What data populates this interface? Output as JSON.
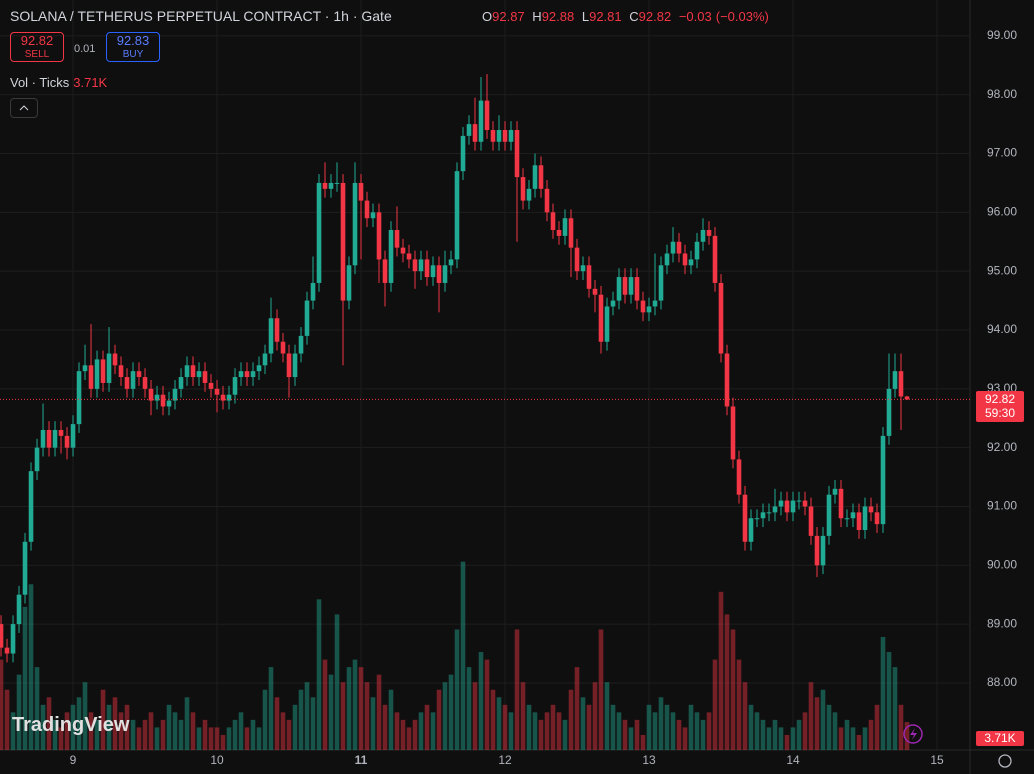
{
  "chart_data": {
    "type": "candlestick",
    "title": "SOLANA / TETHERUS PERPETUAL CONTRACT · 1h · Gate",
    "ohlc_legend": {
      "labels": [
        "O",
        "H",
        "L",
        "C"
      ],
      "change": "−0.03",
      "change_pct": "(−0.03%)"
    },
    "trade": {
      "sell_price": 92.82,
      "sell_label": "SELL",
      "spread": 0.01,
      "buy_price": 92.83,
      "buy_label": "BUY"
    },
    "countdown": "59:30",
    "logo": "TradingView",
    "up_color": "#22ab94",
    "down_color": "#f23645",
    "x": [
      0,
      1,
      2,
      3,
      4,
      5,
      6,
      7,
      8,
      9,
      10,
      11,
      12,
      13,
      14,
      15,
      16,
      17,
      18,
      19,
      20,
      21,
      22,
      23,
      24,
      25,
      26,
      27,
      28,
      29,
      30,
      31,
      32,
      33,
      34,
      35,
      36,
      37,
      38,
      39,
      40,
      41,
      42,
      43,
      44,
      45,
      46,
      47,
      48,
      49,
      50,
      51,
      52,
      53,
      54,
      55,
      56,
      57,
      58,
      59,
      60,
      61,
      62,
      63,
      64,
      65,
      66,
      67,
      68,
      69,
      70,
      71,
      72,
      73,
      74,
      75,
      76,
      77,
      78,
      79,
      80,
      81,
      82,
      83,
      84,
      85,
      86,
      87,
      88,
      89,
      90,
      91,
      92,
      93,
      94,
      95,
      96,
      97,
      98,
      99,
      100,
      101,
      102,
      103,
      104,
      105,
      106,
      107,
      108,
      109,
      110,
      111,
      112,
      113,
      114,
      115,
      116,
      117,
      118,
      119,
      120,
      121,
      122,
      123,
      124,
      125,
      126,
      127,
      128,
      129,
      130,
      131,
      132,
      133,
      134,
      135,
      136,
      137,
      138,
      139,
      140,
      141,
      142,
      143,
      144,
      145,
      146,
      147,
      148,
      149,
      150,
      151
    ],
    "open": [
      89.0,
      88.6,
      88.5,
      89.0,
      89.5,
      90.4,
      91.6,
      92.0,
      92.3,
      92.0,
      92.3,
      92.2,
      92.0,
      92.4,
      93.3,
      93.4,
      93.0,
      93.5,
      93.1,
      93.6,
      93.4,
      93.2,
      93.0,
      93.3,
      93.2,
      93.0,
      92.8,
      92.9,
      92.7,
      92.8,
      93.0,
      93.2,
      93.4,
      93.2,
      93.3,
      93.1,
      93.0,
      92.9,
      92.8,
      92.9,
      93.2,
      93.3,
      93.2,
      93.3,
      93.4,
      93.6,
      94.2,
      93.8,
      93.6,
      93.2,
      93.6,
      93.9,
      94.5,
      94.8,
      96.5,
      96.4,
      96.5,
      96.5,
      94.5,
      95.1,
      96.5,
      96.2,
      95.9,
      96.0,
      95.2,
      94.8,
      95.7,
      95.4,
      95.3,
      95.2,
      95.0,
      95.2,
      94.9,
      95.1,
      94.8,
      95.1,
      95.2,
      96.7,
      97.3,
      97.5,
      97.2,
      97.9,
      97.4,
      97.2,
      97.4,
      97.2,
      97.4,
      96.6,
      96.2,
      96.4,
      96.8,
      96.4,
      96.0,
      95.7,
      95.6,
      95.9,
      95.4,
      95.0,
      95.1,
      94.7,
      94.6,
      93.8,
      94.4,
      94.5,
      94.9,
      94.6,
      94.9,
      94.5,
      94.3,
      94.4,
      94.5,
      95.1,
      95.3,
      95.5,
      95.3,
      95.1,
      95.2,
      95.5,
      95.7,
      95.6,
      94.8,
      93.6,
      92.7,
      91.8,
      91.2,
      90.4,
      90.8,
      90.8,
      90.9,
      90.9,
      91.0,
      91.1,
      90.9,
      91.1,
      91.1,
      91.0,
      90.5,
      90.0,
      90.5,
      91.2,
      91.3,
      90.8,
      90.8,
      90.9,
      90.6,
      91.0,
      90.9,
      90.7,
      92.2,
      93.0,
      93.3,
      92.87
    ],
    "high": [
      89.15,
      88.75,
      89.15,
      89.65,
      90.55,
      91.75,
      92.15,
      92.75,
      92.45,
      92.45,
      92.45,
      92.35,
      92.55,
      93.45,
      93.75,
      94.1,
      93.65,
      93.65,
      94.05,
      93.75,
      93.55,
      93.35,
      93.45,
      93.45,
      93.35,
      93.15,
      93.05,
      93.05,
      92.95,
      93.15,
      93.35,
      93.55,
      93.55,
      93.45,
      93.45,
      93.25,
      93.15,
      93.05,
      93.05,
      93.35,
      93.45,
      93.45,
      93.45,
      93.55,
      93.75,
      94.55,
      94.35,
      93.95,
      93.75,
      93.75,
      94.05,
      94.65,
      95.25,
      96.65,
      96.85,
      96.65,
      96.85,
      96.65,
      95.25,
      96.85,
      96.65,
      96.35,
      96.15,
      96.15,
      95.35,
      95.85,
      96.1,
      95.55,
      95.45,
      95.35,
      95.35,
      95.35,
      95.25,
      95.25,
      95.35,
      95.35,
      96.85,
      97.45,
      97.65,
      97.95,
      98.3,
      98.35,
      97.55,
      97.65,
      97.55,
      97.55,
      97.55,
      96.75,
      96.55,
      97.0,
      96.95,
      96.55,
      96.15,
      95.85,
      96.05,
      96.05,
      95.55,
      95.25,
      95.25,
      94.85,
      94.75,
      94.55,
      94.65,
      95.05,
      95.05,
      95.05,
      95.05,
      94.65,
      94.55,
      95.3,
      95.25,
      95.45,
      95.75,
      95.65,
      95.45,
      95.35,
      95.65,
      95.9,
      95.85,
      95.75,
      94.95,
      93.75,
      92.85,
      91.95,
      91.35,
      90.95,
      90.95,
      91.05,
      91.05,
      91.3,
      91.25,
      91.25,
      91.25,
      91.25,
      91.25,
      91.15,
      90.65,
      90.65,
      91.35,
      91.45,
      91.45,
      90.95,
      91.05,
      91.05,
      91.15,
      91.15,
      91.05,
      92.35,
      93.6,
      93.6,
      93.6,
      92.88
    ],
    "low": [
      88.45,
      88.35,
      88.35,
      88.85,
      89.35,
      90.25,
      91.45,
      91.85,
      91.85,
      91.85,
      91.9,
      91.8,
      91.85,
      92.25,
      93.15,
      92.85,
      92.85,
      92.95,
      92.95,
      93.25,
      93.05,
      92.85,
      92.85,
      93.05,
      92.85,
      92.55,
      92.65,
      92.55,
      92.55,
      92.65,
      92.85,
      93.05,
      93.05,
      93.05,
      92.95,
      92.85,
      92.6,
      92.65,
      92.65,
      92.75,
      93.05,
      93.05,
      93.05,
      93.15,
      93.25,
      93.45,
      93.65,
      93.45,
      92.85,
      93.05,
      93.45,
      93.75,
      94.35,
      94.65,
      96.25,
      96.25,
      96.35,
      93.4,
      94.35,
      94.95,
      95.2,
      95.75,
      95.75,
      94.8,
      94.4,
      94.65,
      95.25,
      95.15,
      95.05,
      94.7,
      94.85,
      94.75,
      94.75,
      94.3,
      94.65,
      94.95,
      95.05,
      96.55,
      97.15,
      97.05,
      97.05,
      97.25,
      97.05,
      97.05,
      97.05,
      97.05,
      95.5,
      96.05,
      96.05,
      96.25,
      96.25,
      95.85,
      95.55,
      95.45,
      95.45,
      94.9,
      94.85,
      94.85,
      94.55,
      94.3,
      93.6,
      93.65,
      94.25,
      94.35,
      94.45,
      94.45,
      94.35,
      94.15,
      94.15,
      94.25,
      94.35,
      94.95,
      95.15,
      95.15,
      94.95,
      94.95,
      95.05,
      95.35,
      95.45,
      94.65,
      93.45,
      92.55,
      91.65,
      91.05,
      90.25,
      90.25,
      90.65,
      90.65,
      90.75,
      90.75,
      90.85,
      90.75,
      90.75,
      90.95,
      90.85,
      90.35,
      89.8,
      89.85,
      90.35,
      91.05,
      90.65,
      90.65,
      90.65,
      90.45,
      90.45,
      90.75,
      90.55,
      90.55,
      92.05,
      92.85,
      92.3,
      92.81
    ],
    "close": [
      88.6,
      88.5,
      89.0,
      89.5,
      90.4,
      91.6,
      92.0,
      92.3,
      92.0,
      92.3,
      92.2,
      92.0,
      92.4,
      93.3,
      93.4,
      93.0,
      93.5,
      93.1,
      93.6,
      93.4,
      93.2,
      93.0,
      93.3,
      93.2,
      93.0,
      92.8,
      92.9,
      92.7,
      92.8,
      93.0,
      93.2,
      93.4,
      93.2,
      93.3,
      93.1,
      93.0,
      92.9,
      92.8,
      92.9,
      93.2,
      93.3,
      93.2,
      93.3,
      93.4,
      93.6,
      94.2,
      93.8,
      93.6,
      93.2,
      93.6,
      93.9,
      94.5,
      94.8,
      96.5,
      96.4,
      96.5,
      96.5,
      94.5,
      95.1,
      96.5,
      96.2,
      95.9,
      96.0,
      95.2,
      94.8,
      95.7,
      95.4,
      95.3,
      95.2,
      95.0,
      95.2,
      94.9,
      95.1,
      94.8,
      95.1,
      95.2,
      96.7,
      97.3,
      97.5,
      97.2,
      97.9,
      97.4,
      97.2,
      97.4,
      97.2,
      97.4,
      96.6,
      96.2,
      96.4,
      96.8,
      96.4,
      96.0,
      95.7,
      95.6,
      95.9,
      95.4,
      95.0,
      95.1,
      94.7,
      94.6,
      93.8,
      94.4,
      94.5,
      94.9,
      94.6,
      94.9,
      94.5,
      94.3,
      94.4,
      94.5,
      95.1,
      95.3,
      95.5,
      95.3,
      95.1,
      95.2,
      95.5,
      95.7,
      95.6,
      94.8,
      93.6,
      92.7,
      91.8,
      91.2,
      90.4,
      90.8,
      90.8,
      90.9,
      90.9,
      91.0,
      91.1,
      90.9,
      91.1,
      91.1,
      91.0,
      90.5,
      90.0,
      90.5,
      91.2,
      91.3,
      90.8,
      90.8,
      90.9,
      90.6,
      91.0,
      90.9,
      90.7,
      92.2,
      93.0,
      93.3,
      92.87,
      92.82
    ],
    "volume": {
      "name": "Vol · Ticks",
      "last_label": "3.71K",
      "vlim": [
        0,
        30000
      ],
      "values": [
        12000,
        8000,
        5000,
        10000,
        19000,
        22000,
        11000,
        6000,
        7000,
        4000,
        3000,
        5000,
        6000,
        7000,
        9000,
        5000,
        4000,
        8000,
        6000,
        7000,
        5000,
        6000,
        4000,
        3000,
        4000,
        5000,
        3000,
        4000,
        6000,
        5000,
        4000,
        7000,
        5000,
        3000,
        4000,
        3000,
        3000,
        2000,
        3000,
        4000,
        5000,
        3000,
        4000,
        3000,
        8000,
        11000,
        7000,
        5000,
        4000,
        6000,
        8000,
        9000,
        7000,
        20000,
        12000,
        10000,
        18000,
        9000,
        11000,
        12000,
        11000,
        9000,
        7000,
        10000,
        6000,
        8000,
        5000,
        4000,
        3000,
        4000,
        5000,
        6000,
        5000,
        8000,
        9000,
        10000,
        16000,
        25000,
        11000,
        9000,
        13000,
        12000,
        8000,
        7000,
        6000,
        5000,
        16000,
        9000,
        6000,
        5000,
        4000,
        5000,
        6000,
        5000,
        4000,
        8000,
        11000,
        7000,
        6000,
        9000,
        16000,
        9000,
        6000,
        5000,
        4000,
        3000,
        4000,
        2000,
        6000,
        5000,
        7000,
        6000,
        5000,
        4000,
        3000,
        6000,
        5000,
        4000,
        5000,
        12000,
        21000,
        18000,
        16000,
        12000,
        9000,
        6000,
        5000,
        4000,
        3000,
        4000,
        3000,
        2000,
        3000,
        4000,
        5000,
        9000,
        7000,
        8000,
        6000,
        5000,
        3000,
        4000,
        3000,
        2000,
        3000,
        4000,
        6000,
        15000,
        13000,
        11000,
        6000,
        3710
      ]
    },
    "xlim": [
      -0.17,
      161.5
    ],
    "xticks": [
      {
        "value": 12,
        "label": "9"
      },
      {
        "value": 36,
        "label": "10"
      },
      {
        "value": 60,
        "label": "11"
      },
      {
        "value": 84,
        "label": "12"
      },
      {
        "value": 108,
        "label": "13"
      },
      {
        "value": 132,
        "label": "14"
      },
      {
        "value": 156,
        "label": "15"
      }
    ],
    "ylim": [
      86.86,
      99.61
    ],
    "yticks": [
      {
        "value": 88,
        "label": "88.00"
      },
      {
        "value": 89,
        "label": "89.00"
      },
      {
        "value": 90,
        "label": "90.00"
      },
      {
        "value": 91,
        "label": "91.00"
      },
      {
        "value": 92,
        "label": "92.00"
      },
      {
        "value": 93,
        "label": "93.00"
      },
      {
        "value": 94,
        "label": "94.00"
      },
      {
        "value": 95,
        "label": "95.00"
      },
      {
        "value": 96,
        "label": "96.00"
      },
      {
        "value": 97,
        "label": "97.00"
      },
      {
        "value": 98,
        "label": "98.00"
      },
      {
        "value": 99,
        "label": "99.00"
      }
    ],
    "grid": true
  }
}
